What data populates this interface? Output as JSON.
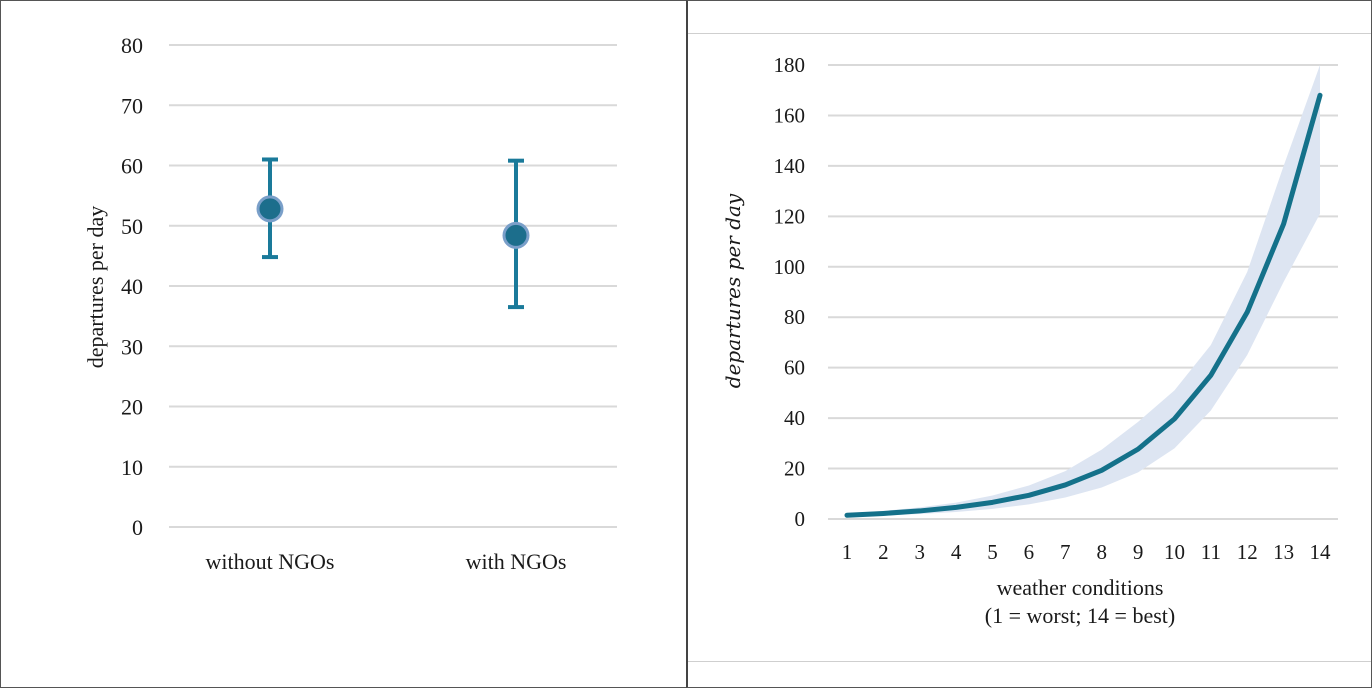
{
  "chart_data": [
    {
      "type": "scatter",
      "categories": [
        "without NGOs",
        "with NGOs"
      ],
      "values": [
        52.8,
        48.4
      ],
      "error_low": [
        44.8,
        36.5
      ],
      "error_high": [
        61.0,
        60.8
      ],
      "xlabel": "",
      "ylabel": "departures per day",
      "ylim": [
        0,
        80
      ],
      "yticks": [
        "0",
        "10",
        "20",
        "30",
        "40",
        "50",
        "60",
        "70",
        "80"
      ],
      "grid": true,
      "colors": {
        "marker": "#1c6e8c",
        "marker_edge": "#7a9fc9",
        "errorbar": "#1a7a9a",
        "grid": "#d9d9d9"
      }
    },
    {
      "type": "line",
      "x": [
        "1",
        "2",
        "3",
        "4",
        "5",
        "6",
        "7",
        "8",
        "9",
        "10",
        "11",
        "12",
        "13",
        "14"
      ],
      "values": [
        1.5,
        2.2,
        3.2,
        4.6,
        6.6,
        9.4,
        13.5,
        19.3,
        27.7,
        39.7,
        57,
        82,
        117,
        168
      ],
      "band_low": [
        1.0,
        1.4,
        2.0,
        2.8,
        4.0,
        5.8,
        8.5,
        12.5,
        18.5,
        28,
        43,
        65,
        94,
        121
      ],
      "band_high": [
        2.2,
        3.2,
        4.6,
        6.5,
        9.3,
        13.3,
        19.0,
        27.5,
        38.5,
        51,
        69,
        98,
        140,
        180
      ],
      "xlabel_line1": "weather conditions",
      "xlabel_line2": "(1 = worst; 14 = best)",
      "ylabel": "departures per day",
      "ylim": [
        0,
        180
      ],
      "yticks": [
        "0",
        "20",
        "40",
        "60",
        "80",
        "100",
        "120",
        "140",
        "160",
        "180"
      ],
      "grid": true,
      "colors": {
        "line": "#14718a",
        "band": "#dde5f2",
        "grid": "#d9d9d9"
      }
    }
  ]
}
